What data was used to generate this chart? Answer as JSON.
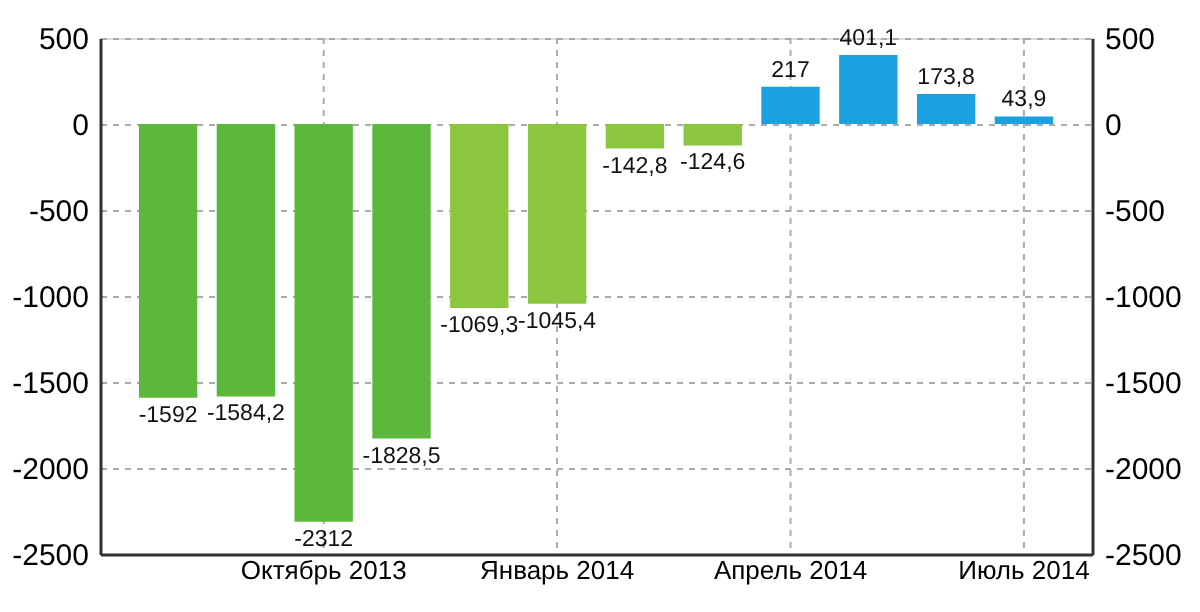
{
  "chart_data": {
    "type": "bar",
    "categories": [
      null,
      null,
      "Октябрь 2013",
      null,
      null,
      "Январь 2014",
      null,
      null,
      "Апрель 2014",
      null,
      null,
      "Июль 2014"
    ],
    "values": [
      -1592,
      -1584.2,
      -2312,
      -1828.5,
      -1069.3,
      -1045.4,
      -142.8,
      -124.6,
      217,
      401.1,
      173.8,
      43.9
    ],
    "value_labels": [
      "-1592",
      "-1584,2",
      "-2312",
      "-1828,5",
      "-1069,3",
      "-1045,4",
      "-142,8",
      "-124,6",
      "217",
      "401,1",
      "173,8",
      "43,9"
    ],
    "colors": [
      "#5cb83a",
      "#5cb83a",
      "#5cb83a",
      "#5cb83a",
      "#8cc63f",
      "#8cc63f",
      "#8cc63f",
      "#8cc63f",
      "#1ba1e2",
      "#1ba1e2",
      "#1ba1e2",
      "#1ba1e2"
    ],
    "ylim": [
      -2500,
      500
    ],
    "yticks": [
      -2500,
      -2000,
      -1500,
      -1000,
      -500,
      0,
      500
    ],
    "y2lim": [
      -2500,
      500
    ],
    "y2ticks": [
      -2500,
      -2000,
      -1500,
      -1000,
      -500,
      0,
      500
    ],
    "grid": true
  }
}
